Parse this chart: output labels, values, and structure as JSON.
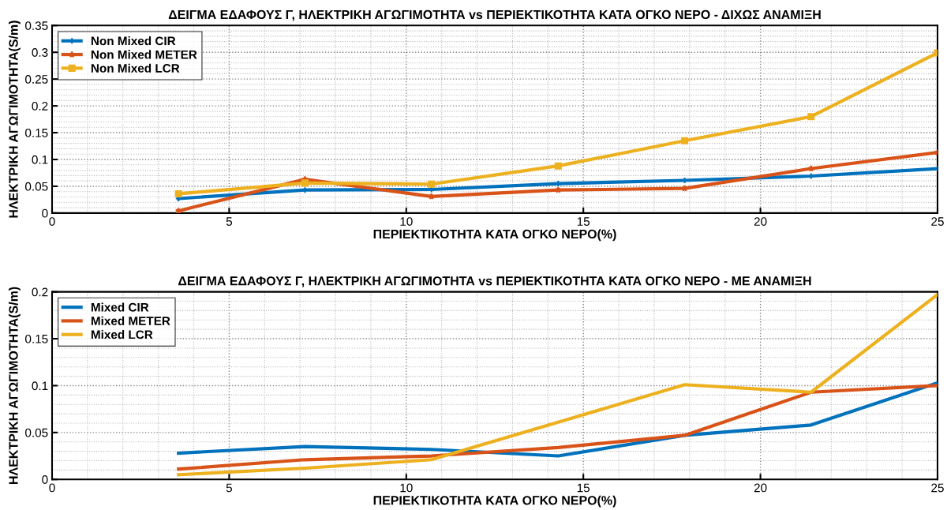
{
  "chart_data": [
    {
      "type": "line",
      "title": "ΔΕΙΓΜΑ ΕΔΑΦΟΥΣ Γ, ΗΛΕΚΤΡΙΚΗ ΑΓΩΓΙΜΟΤΗΤΑ vs ΠΕΡΙΕΚΤΙΚΟΤΗΤΑ ΚΑΤΑ ΟΓΚΟ ΝΕΡΟ - ΔΙΧΩΣ ΑΝΑΜΙΞΗ",
      "xlabel": "ΠΕΡΙΕΚΤΙΚΟΤΗΤΑ ΚΑΤΑ ΟΓΚΟ ΝΕΡΟ(%)",
      "ylabel": "ΗΛΕΚΤΡΙΚΗ ΑΓΩΓΙΜΟΤΗΤΑ(S/m)",
      "x": [
        3.57,
        7.14,
        10.71,
        14.29,
        17.86,
        21.43,
        25
      ],
      "series": [
        {
          "name": "Non Mixed CIR",
          "color": "#0072bd",
          "marker": "cross",
          "values": [
            0.027,
            0.043,
            0.044,
            0.055,
            0.061,
            0.069,
            0.083
          ]
        },
        {
          "name": "Non Mixed METER",
          "color": "#d95319",
          "marker": "star",
          "values": [
            0.004,
            0.063,
            0.031,
            0.043,
            0.046,
            0.083,
            0.113
          ]
        },
        {
          "name": "Non Mixed LCR",
          "color": "#edb120",
          "marker": "square",
          "values": [
            0.036,
            0.056,
            0.054,
            0.088,
            0.135,
            0.18,
            0.299
          ]
        }
      ],
      "xlim": [
        0,
        25
      ],
      "xticks": [
        0,
        5,
        10,
        15,
        20,
        25
      ],
      "ylim": [
        0,
        0.35
      ],
      "yticks": [
        0,
        0.05,
        0.1,
        0.15,
        0.2,
        0.25,
        0.3,
        0.35
      ],
      "grid": true,
      "legend": "top left"
    },
    {
      "type": "line",
      "title": "ΔΕΙΓΜΑ ΕΔΑΦΟΥΣ Γ, ΗΛΕΚΤΡΙΚΗ ΑΓΩΓΙΜΟΤΗΤΑ vs ΠΕΡΙΕΚΤΙΚΟΤΗΤΑ ΚΑΤΑ ΟΓΚΟ ΝΕΡΟ - ΜΕ ΑΝΑΜΙΞΗ",
      "xlabel": "ΠΕΡΙΕΚΤΙΚΟΤΗΤΑ ΚΑΤΑ ΟΓΚΟ ΝΕΡΟ(%)",
      "ylabel": "ΗΛΕΚΤΡΙΚΗ ΑΓΩΓΙΜΟΤΗΤΑ(S/m)",
      "x": [
        3.57,
        7.14,
        10.71,
        14.29,
        17.86,
        21.43,
        25
      ],
      "series": [
        {
          "name": "Mixed CIR",
          "color": "#0072bd",
          "values": [
            0.028,
            0.035,
            0.032,
            0.025,
            0.047,
            0.058,
            0.103
          ]
        },
        {
          "name": "Mixed METER",
          "color": "#d95319",
          "values": [
            0.011,
            0.021,
            0.025,
            0.034,
            0.047,
            0.093,
            0.1
          ]
        },
        {
          "name": "Mixed LCR",
          "color": "#edb120",
          "values": [
            0.005,
            0.012,
            0.021,
            0.061,
            0.101,
            0.093,
            0.197
          ]
        }
      ],
      "xlim": [
        0,
        25
      ],
      "xticks": [
        0,
        5,
        10,
        15,
        20,
        25
      ],
      "ylim": [
        0,
        0.2
      ],
      "yticks": [
        0,
        0.05,
        0.1,
        0.15,
        0.2
      ],
      "grid": true,
      "legend": "top left"
    }
  ]
}
